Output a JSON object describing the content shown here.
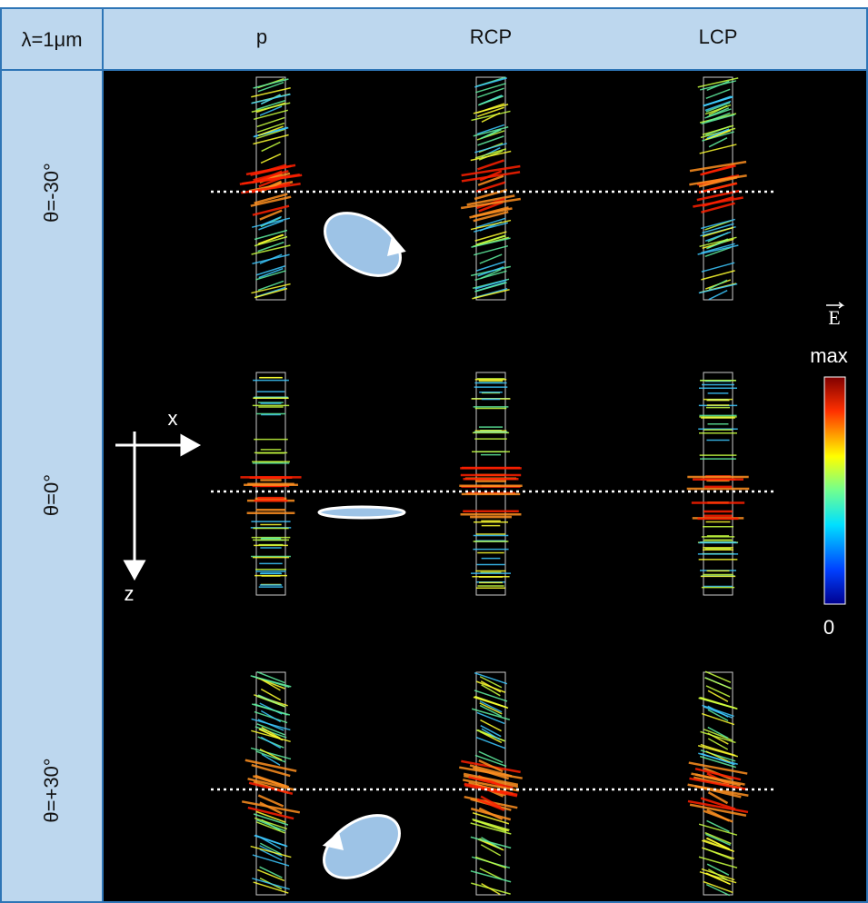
{
  "header": {
    "corner": "λ=1μm",
    "columns": [
      "p",
      "RCP",
      "LCP"
    ]
  },
  "rows": [
    "θ=-30°",
    "θ=0°",
    "θ=+30°"
  ],
  "axes": {
    "x": "x",
    "z": "z"
  },
  "colorbar": {
    "symbol": "E",
    "top": "max",
    "bottom": "0"
  }
}
